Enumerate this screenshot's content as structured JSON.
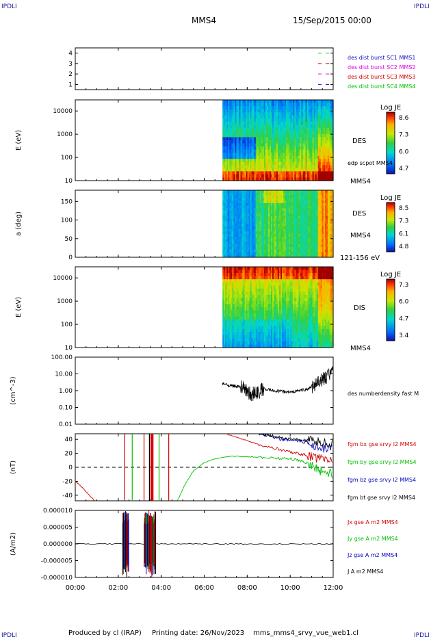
{
  "header": {
    "corner_left": "IPDLI",
    "corner_right": "IPDLI",
    "title": "MMS4",
    "datetime": "15/Sep/2015 00:00"
  },
  "footer": {
    "produced_by": "Produced by cl (IRAP)",
    "printing_date": "Printing date: 26/Nov/2023",
    "filename": "mms_mms4_srvy_vue_web1.cl",
    "corner_left": "IPDLI",
    "corner_right": "IPDLI"
  },
  "colors": {
    "mms1": "#1010c0",
    "mms2": "#e000e0",
    "mms3": "#d00000",
    "mms4": "#00c000",
    "bx": "#d00000",
    "by": "#00c000",
    "bz": "#0000c0",
    "bt": "#000000"
  },
  "time_axis": {
    "ticks": [
      "00:00",
      "02:00",
      "04:00",
      "06:00",
      "08:00",
      "10:00",
      "12:00"
    ],
    "range_hours": [
      0,
      12
    ]
  },
  "chart_data": [
    {
      "type": "line",
      "panel": "burst",
      "yticks": [
        "4",
        "3",
        "2",
        "1"
      ],
      "ylim": [
        0.5,
        4.5
      ],
      "legend": [
        {
          "name": "des dist burst SC1 MMS1",
          "color": "#1010c0",
          "level": 1
        },
        {
          "name": "des dist burst SC2 MMS2",
          "color": "#e000e0",
          "level": 2
        },
        {
          "name": "des dist burst SC3 MMS3",
          "color": "#d00000",
          "level": 3
        },
        {
          "name": "des dist burst SC4 MMS4",
          "color": "#00c000",
          "level": 4
        }
      ]
    },
    {
      "type": "heatmap",
      "panel": "des_energy",
      "ylabel": "E (eV)",
      "yscale": "log",
      "ylim": [
        10,
        30000
      ],
      "yticks": [
        "10000",
        "1000",
        "100",
        "10"
      ],
      "data_start_hour": 6.85,
      "colorbar": {
        "title": "Log JE",
        "ticks": [
          "8.6",
          "7.3",
          "6.0",
          "4.7"
        ]
      },
      "labels": [
        "DES",
        "edp scpot MMS4",
        "MMS4"
      ]
    },
    {
      "type": "heatmap",
      "panel": "des_pitch",
      "ylabel": "a (deg)",
      "ylim": [
        0,
        180
      ],
      "yticks": [
        "150",
        "100",
        "50",
        "0"
      ],
      "data_start_hour": 6.85,
      "colorbar": {
        "title": "Log JE",
        "ticks": [
          "8.5",
          "7.3",
          "6.1",
          "4.8"
        ]
      },
      "labels": [
        "DES",
        "MMS4",
        "121-156 eV"
      ]
    },
    {
      "type": "heatmap",
      "panel": "dis_energy",
      "ylabel": "E (eV)",
      "yscale": "log",
      "ylim": [
        10,
        30000
      ],
      "yticks": [
        "10000",
        "1000",
        "100",
        "10"
      ],
      "data_start_hour": 6.85,
      "colorbar": {
        "title": "Log JE",
        "ticks": [
          "7.3",
          "6.0",
          "4.7",
          "3.4"
        ]
      },
      "labels": [
        "DIS",
        "MMS4"
      ]
    },
    {
      "type": "line",
      "panel": "density",
      "ylabel": "(cm^-3)",
      "yscale": "log",
      "ylim": [
        0.01,
        100
      ],
      "yticks": [
        "100.00",
        "10.00",
        "1.00",
        "0.10",
        "0.01"
      ],
      "series": [
        {
          "name": "des numberdensity fast M",
          "color": "#000000",
          "x": [
            6.85,
            7.2,
            7.5,
            7.8,
            8.0,
            8.2,
            8.5,
            8.8,
            9.2,
            9.6,
            10.0,
            10.4,
            10.8,
            11.1,
            11.4,
            11.7,
            12.0
          ],
          "y": [
            2.6,
            2.0,
            1.8,
            1.5,
            1.0,
            0.6,
            0.8,
            1.3,
            1.0,
            0.9,
            0.8,
            1.0,
            1.2,
            2.0,
            3.5,
            7.0,
            12.0
          ]
        }
      ]
    },
    {
      "type": "line",
      "panel": "magnetic_field",
      "ylabel": "(nT)",
      "ylim": [
        -48,
        48
      ],
      "yticks": [
        "40",
        "20",
        "0",
        "-20",
        "-40"
      ],
      "series": [
        {
          "name": "fgm bx gse srvy l2 MMS4",
          "color": "#d00000",
          "x": [
            0.0,
            0.3,
            0.6,
            0.9,
            7.0,
            7.8,
            8.5,
            9.3,
            10.0,
            10.6,
            11.0,
            11.5,
            12.0
          ],
          "y": [
            -20.0,
            -28.0,
            -38.0,
            -48.0,
            48.0,
            40.0,
            33.0,
            27.0,
            22.0,
            18.0,
            15.0,
            12.0,
            10.0
          ]
        },
        {
          "name": "fgm by gse srvy l2 MMS4",
          "color": "#00c000",
          "x": [
            4.75,
            5.1,
            5.5,
            6.0,
            6.6,
            7.3,
            8.0,
            8.8,
            9.6,
            10.3,
            10.9,
            11.4,
            12.0
          ],
          "y": [
            -48.0,
            -25.0,
            -5.0,
            7.0,
            13.0,
            16.0,
            15.0,
            14.0,
            13.0,
            11.0,
            5.0,
            -5.0,
            -10.0
          ]
        },
        {
          "name": "fgm bz gse srvy l2 MMS4",
          "color": "#0000c0",
          "x": [
            8.55,
            9.0,
            9.6,
            10.2,
            10.8,
            11.3,
            12.0
          ],
          "y": [
            48.0,
            45.0,
            40.0,
            38.0,
            35.0,
            30.0,
            25.0
          ]
        },
        {
          "name": "fgm bt gse srvy l2 MMS4",
          "color": "#000000",
          "x": [
            8.55,
            9.0,
            9.6,
            10.2,
            10.8,
            11.3,
            12.0
          ],
          "y": [
            48.0,
            46.0,
            42.0,
            40.0,
            38.0,
            36.0,
            34.0
          ]
        }
      ]
    },
    {
      "type": "line",
      "panel": "current_density",
      "ylabel": "(A/m2)",
      "ylim": [
        -0.0001,
        0.0001
      ],
      "yticks": [
        "0.000010",
        "0.000005",
        "0.000000",
        "-0.000005",
        "-0.000010"
      ],
      "series": [
        {
          "name": "Jx gse A m2 MMS4",
          "color": "#d00000"
        },
        {
          "name": "Jy gse A m2 MMS4",
          "color": "#00c000"
        },
        {
          "name": "Jz gse A m2 MMS4",
          "color": "#0000c0"
        },
        {
          "name": "J A m2 MMS4",
          "color": "#000000"
        }
      ]
    }
  ]
}
